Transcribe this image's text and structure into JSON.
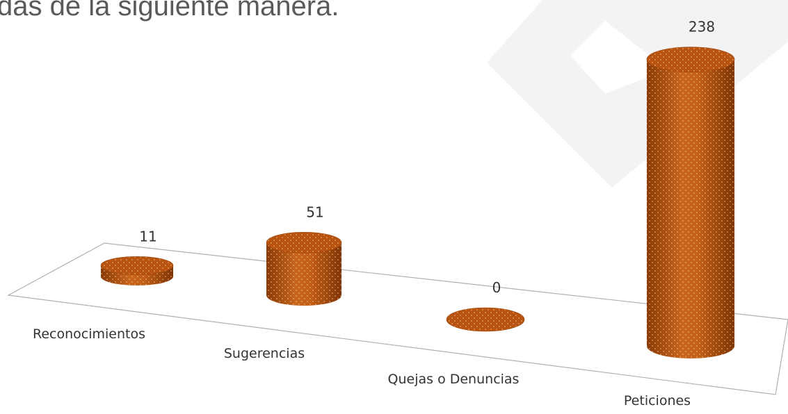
{
  "chart_data": {
    "type": "bar3d-cylinder",
    "title": "das de la siguiente manera.",
    "categories": [
      "Reconocimientos",
      "Sugerencias",
      "Quejas o Denuncias",
      "Peticiones"
    ],
    "values": [
      11,
      51,
      0,
      238
    ],
    "color": "#b85410"
  }
}
